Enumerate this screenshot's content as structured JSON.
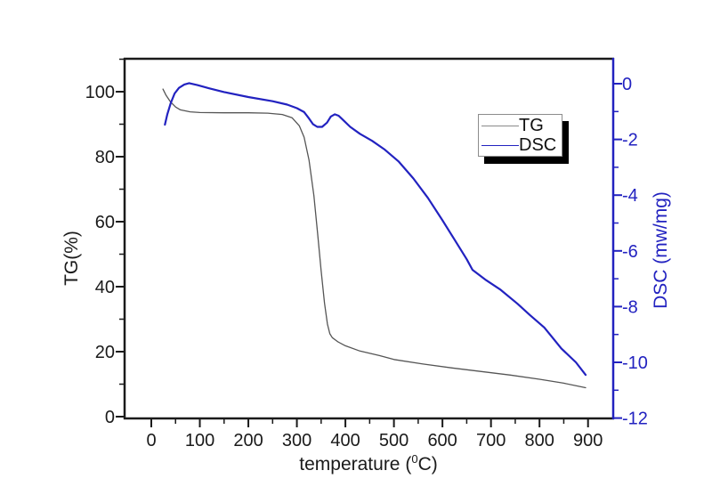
{
  "colors": {
    "dsc_blue": "#2222c0",
    "tg_line": "#555555",
    "axis_black": "#1a1a1a",
    "background": "#ffffff",
    "legend_tg_sample": "#8a8a8a"
  },
  "titles": {
    "xlabel_prefix": "temperature (",
    "xlabel_sup": "0",
    "xlabel_suffix": "C)",
    "ylabel_left": "TG(%)",
    "ylabel_right": "DSC (mw/mg)"
  },
  "legend": {
    "entries": [
      {
        "label": "TG"
      },
      {
        "label": "DSC"
      }
    ]
  },
  "chart_data": {
    "type": "line",
    "title": "",
    "xlabel": "temperature (0C)",
    "ylabel_left": "TG(%)",
    "ylabel_right": "DSC (mw/mg)",
    "x_ticks": [
      0,
      100,
      200,
      300,
      400,
      500,
      600,
      700,
      800,
      900
    ],
    "y_left_ticks": [
      0,
      20,
      40,
      60,
      80,
      100
    ],
    "y_right_ticks": [
      0,
      -2,
      -4,
      -6,
      -8,
      -10,
      -12
    ],
    "x_range_shown": [
      -55,
      950
    ],
    "y_left_range_shown": [
      0,
      110
    ],
    "y_right_range_shown": [
      -12,
      1
    ],
    "grid": false,
    "legend_position": "upper-right-inside",
    "series": [
      {
        "name": "TG",
        "axis": "left",
        "units": "%",
        "points": [
          [
            24,
            100.8
          ],
          [
            30,
            99.0
          ],
          [
            40,
            96.8
          ],
          [
            50,
            95.3
          ],
          [
            60,
            94.4
          ],
          [
            80,
            93.8
          ],
          [
            100,
            93.6
          ],
          [
            150,
            93.5
          ],
          [
            200,
            93.5
          ],
          [
            240,
            93.4
          ],
          [
            270,
            93.0
          ],
          [
            290,
            92.0
          ],
          [
            305,
            89.5
          ],
          [
            315,
            86.0
          ],
          [
            325,
            79.0
          ],
          [
            335,
            68.0
          ],
          [
            343,
            56.0
          ],
          [
            350,
            45.0
          ],
          [
            357,
            35.0
          ],
          [
            363,
            28.5
          ],
          [
            368,
            25.5
          ],
          [
            373,
            24.3
          ],
          [
            385,
            23.0
          ],
          [
            400,
            21.8
          ],
          [
            430,
            20.2
          ],
          [
            470,
            18.8
          ],
          [
            500,
            17.6
          ],
          [
            560,
            16.2
          ],
          [
            620,
            15.0
          ],
          [
            680,
            13.9
          ],
          [
            740,
            12.8
          ],
          [
            800,
            11.5
          ],
          [
            850,
            10.3
          ],
          [
            895,
            8.9
          ]
        ]
      },
      {
        "name": "DSC",
        "axis": "right",
        "units": "mw/mg",
        "points": [
          [
            28,
            -1.47
          ],
          [
            33,
            -1.1
          ],
          [
            40,
            -0.7
          ],
          [
            48,
            -0.35
          ],
          [
            57,
            -0.15
          ],
          [
            68,
            -0.03
          ],
          [
            78,
            0.02
          ],
          [
            95,
            -0.05
          ],
          [
            120,
            -0.17
          ],
          [
            150,
            -0.3
          ],
          [
            200,
            -0.48
          ],
          [
            250,
            -0.63
          ],
          [
            280,
            -0.75
          ],
          [
            300,
            -0.88
          ],
          [
            315,
            -1.02
          ],
          [
            325,
            -1.25
          ],
          [
            333,
            -1.45
          ],
          [
            342,
            -1.55
          ],
          [
            352,
            -1.55
          ],
          [
            362,
            -1.4
          ],
          [
            370,
            -1.18
          ],
          [
            378,
            -1.1
          ],
          [
            386,
            -1.15
          ],
          [
            395,
            -1.3
          ],
          [
            410,
            -1.55
          ],
          [
            430,
            -1.8
          ],
          [
            455,
            -2.05
          ],
          [
            480,
            -2.35
          ],
          [
            510,
            -2.8
          ],
          [
            540,
            -3.4
          ],
          [
            570,
            -4.1
          ],
          [
            600,
            -4.9
          ],
          [
            625,
            -5.6
          ],
          [
            650,
            -6.3
          ],
          [
            662,
            -6.68
          ],
          [
            690,
            -7.05
          ],
          [
            720,
            -7.4
          ],
          [
            755,
            -7.9
          ],
          [
            780,
            -8.3
          ],
          [
            810,
            -8.75
          ],
          [
            845,
            -9.5
          ],
          [
            875,
            -10.0
          ],
          [
            895,
            -10.45
          ]
        ]
      }
    ]
  }
}
